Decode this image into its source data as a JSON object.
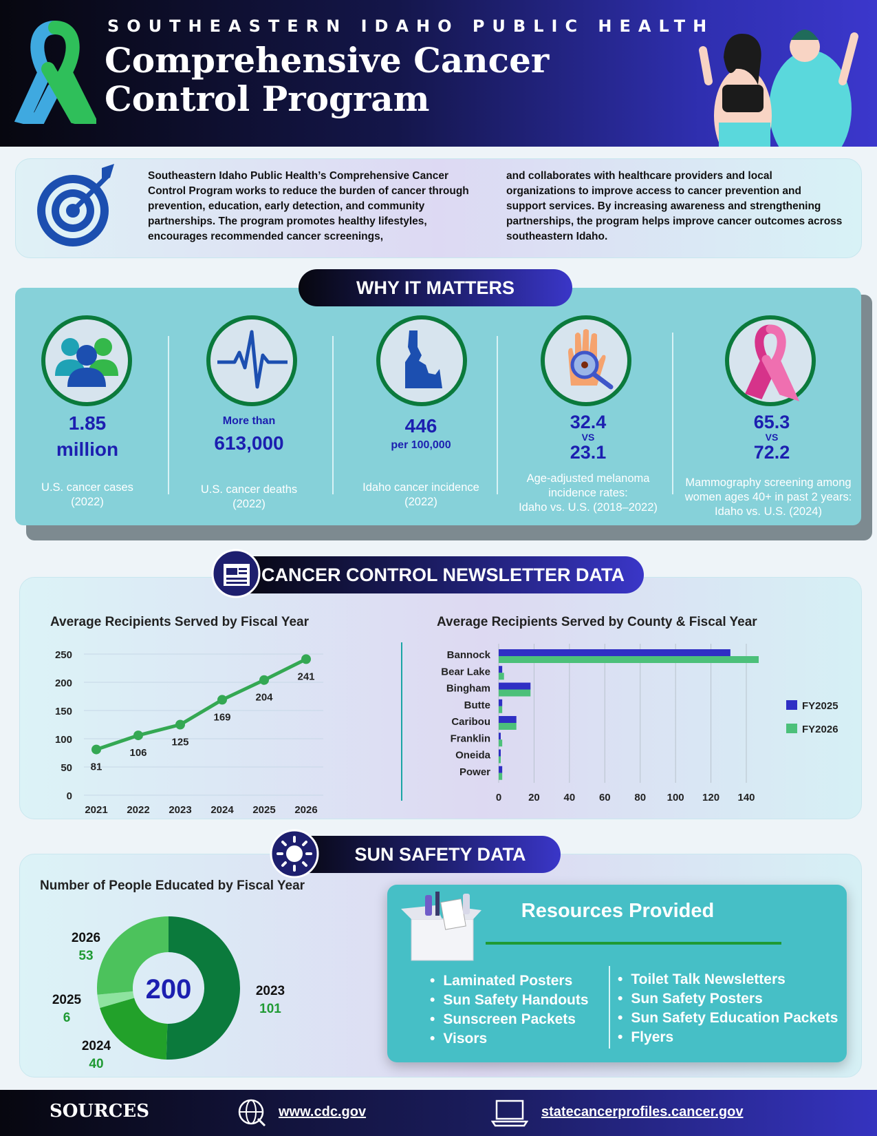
{
  "header": {
    "org": "SOUTHEASTERN IDAHO PUBLIC HEALTH",
    "title_line1": "Comprehensive Cancer",
    "title_line2": "Control Program"
  },
  "intro": {
    "col1": "Southeastern Idaho Public Health’s Comprehensive Cancer Control Program works to reduce the burden of cancer through prevention, education, early detection, and community partnerships. The program promotes healthy lifestyles, encourages recommended cancer screenings,",
    "col2": "and collaborates with healthcare providers and local organizations to improve access to cancer prevention and support services. By increasing awareness and strengthening partnerships, the program helps improve cancer outcomes across southeastern Idaho."
  },
  "why": {
    "heading": "WHY IT MATTERS",
    "stats": [
      {
        "value": "1.85",
        "value2": "million",
        "label1": "U.S. cancer cases",
        "label2": "(2022)"
      },
      {
        "prefix": "More than",
        "value": "613,000",
        "label1": "U.S. cancer deaths",
        "label2": "(2022)"
      },
      {
        "value": "446",
        "suffix": "per 100,000",
        "label1": "Idaho cancer incidence",
        "label2": "(2022)"
      },
      {
        "value": "32.4",
        "vs": "VS",
        "value2": "23.1",
        "label1": "Age-adjusted melanoma",
        "label2": "incidence rates:",
        "label3": "Idaho vs. U.S. (2018–2022)"
      },
      {
        "value": "65.3",
        "vs": "VS",
        "value2": "72.2",
        "label1": "Mammography screening among",
        "label2": "women ages 40+ in past 2 years:",
        "label3": "Idaho vs. U.S. (2024)"
      }
    ]
  },
  "newsletter": {
    "heading": "CANCER CONTROL NEWSLETTER DATA",
    "line_title": "Average Recipients Served by Fiscal Year",
    "bar_title": "Average Recipients Served by County & Fiscal Year"
  },
  "sun": {
    "heading": "SUN SAFETY DATA",
    "donut_title": "Number of People Educated by Fiscal Year",
    "resources_title": "Resources Provided",
    "resources_left": [
      "Laminated Posters",
      "Sun Safety Handouts",
      "Sunscreen Packets",
      "Visors"
    ],
    "resources_right": [
      "Toilet Talk Newsletters",
      "Sun Safety Posters",
      "Sun Safety Education Packets",
      "Flyers"
    ]
  },
  "footer": {
    "label": "SOURCES",
    "link1": "www.cdc.gov",
    "link2": "statecancerprofiles.cancer.gov"
  },
  "colors": {
    "line": "#34a853",
    "fy2025": "#2f2fc4",
    "fy2026": "#4cc07a",
    "donut": [
      "#0b7a3c",
      "#22a12a",
      "#8ee39f",
      "#4cc25c"
    ]
  },
  "chart_data": [
    {
      "type": "line",
      "title": "Average Recipients Served by Fiscal Year",
      "x": [
        "2021",
        "2022",
        "2023",
        "2024",
        "2025",
        "2026"
      ],
      "values": [
        81,
        106,
        125,
        169,
        204,
        241
      ],
      "ylim": [
        0,
        250
      ],
      "yticks": [
        0,
        50,
        100,
        150,
        200,
        250
      ],
      "grid": true
    },
    {
      "type": "bar",
      "orientation": "horizontal",
      "title": "Average Recipients Served by County & Fiscal Year",
      "categories": [
        "Bannock",
        "Bear Lake",
        "Bingham",
        "Butte",
        "Caribou",
        "Franklin",
        "Oneida",
        "Power"
      ],
      "series": [
        {
          "name": "FY2025",
          "values": [
            131,
            2,
            18,
            2,
            10,
            1,
            1,
            2
          ]
        },
        {
          "name": "FY2026",
          "values": [
            147,
            3,
            18,
            2,
            10,
            2,
            1,
            2
          ]
        }
      ],
      "xlim": [
        0,
        140
      ],
      "xticks": [
        0,
        20,
        40,
        60,
        80,
        100,
        120,
        140
      ],
      "legend": "right",
      "grid": true
    },
    {
      "type": "pie",
      "style": "donut",
      "title": "Number of People Educated by Fiscal Year",
      "center_label": "200",
      "slices": [
        {
          "label": "2023",
          "value": 101
        },
        {
          "label": "2024",
          "value": 40
        },
        {
          "label": "2025",
          "value": 6
        },
        {
          "label": "2026",
          "value": 53
        }
      ]
    }
  ]
}
